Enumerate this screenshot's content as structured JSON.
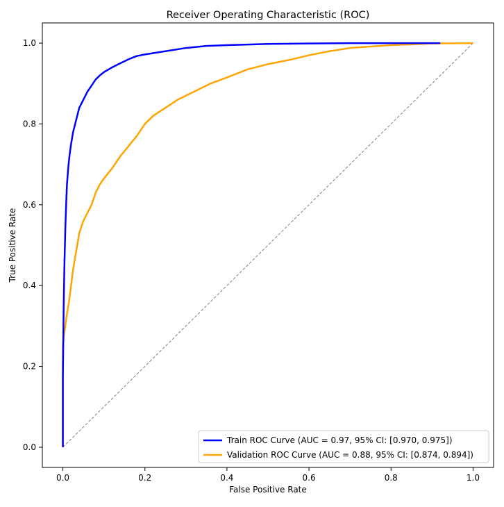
{
  "chart_data": {
    "type": "line",
    "title": "Receiver Operating Characteristic (ROC)",
    "xlabel": "False Positive Rate",
    "ylabel": "True Positive Rate",
    "xlim": [
      -0.05,
      1.05
    ],
    "ylim": [
      -0.05,
      1.05
    ],
    "xticks": [
      0.0,
      0.2,
      0.4,
      0.6,
      0.8,
      1.0
    ],
    "xtick_labels": [
      "0.0",
      "0.2",
      "0.4",
      "0.6",
      "0.8",
      "1.0"
    ],
    "yticks": [
      0.0,
      0.2,
      0.4,
      0.6,
      0.8,
      1.0
    ],
    "ytick_labels": [
      "0.0",
      "0.2",
      "0.4",
      "0.6",
      "0.8",
      "1.0"
    ],
    "grid": false,
    "legend_position": "lower-right",
    "series": [
      {
        "name": "Train ROC Curve (AUC = 0.97, 95% CI: [0.970, 0.975])",
        "color": "#0000ff",
        "style": "solid",
        "x": [
          0.0,
          0.0,
          0.002,
          0.004,
          0.006,
          0.008,
          0.01,
          0.013,
          0.016,
          0.02,
          0.025,
          0.03,
          0.035,
          0.04,
          0.05,
          0.06,
          0.07,
          0.08,
          0.09,
          0.1,
          0.12,
          0.14,
          0.16,
          0.18,
          0.2,
          0.25,
          0.3,
          0.35,
          0.4,
          0.5,
          0.6,
          0.7,
          0.8,
          0.92
        ],
        "y": [
          0.0,
          0.17,
          0.35,
          0.46,
          0.54,
          0.6,
          0.65,
          0.69,
          0.72,
          0.75,
          0.78,
          0.8,
          0.82,
          0.84,
          0.86,
          0.88,
          0.895,
          0.91,
          0.92,
          0.928,
          0.94,
          0.95,
          0.96,
          0.968,
          0.972,
          0.98,
          0.988,
          0.993,
          0.995,
          0.998,
          0.999,
          1.0,
          1.0,
          1.0
        ]
      },
      {
        "name": "Validation ROC Curve (AUC = 0.88, 95% CI: [0.874, 0.894])",
        "color": "#ffa500",
        "style": "solid",
        "x": [
          0.0,
          0.0,
          0.003,
          0.006,
          0.01,
          0.015,
          0.02,
          0.025,
          0.03,
          0.035,
          0.04,
          0.05,
          0.06,
          0.07,
          0.08,
          0.09,
          0.1,
          0.12,
          0.14,
          0.16,
          0.18,
          0.2,
          0.22,
          0.25,
          0.28,
          0.3,
          0.33,
          0.36,
          0.4,
          0.45,
          0.5,
          0.55,
          0.6,
          0.65,
          0.7,
          0.8,
          0.9,
          1.0
        ],
        "y": [
          0.0,
          0.25,
          0.28,
          0.3,
          0.33,
          0.36,
          0.4,
          0.44,
          0.47,
          0.5,
          0.53,
          0.56,
          0.58,
          0.6,
          0.63,
          0.65,
          0.665,
          0.69,
          0.72,
          0.745,
          0.77,
          0.8,
          0.82,
          0.84,
          0.86,
          0.87,
          0.885,
          0.9,
          0.915,
          0.935,
          0.948,
          0.958,
          0.97,
          0.98,
          0.988,
          0.995,
          0.999,
          1.0
        ]
      },
      {
        "name": "",
        "color": "#808080",
        "style": "dashed",
        "x": [
          0.0,
          1.0
        ],
        "y": [
          0.0,
          1.0
        ]
      }
    ]
  }
}
